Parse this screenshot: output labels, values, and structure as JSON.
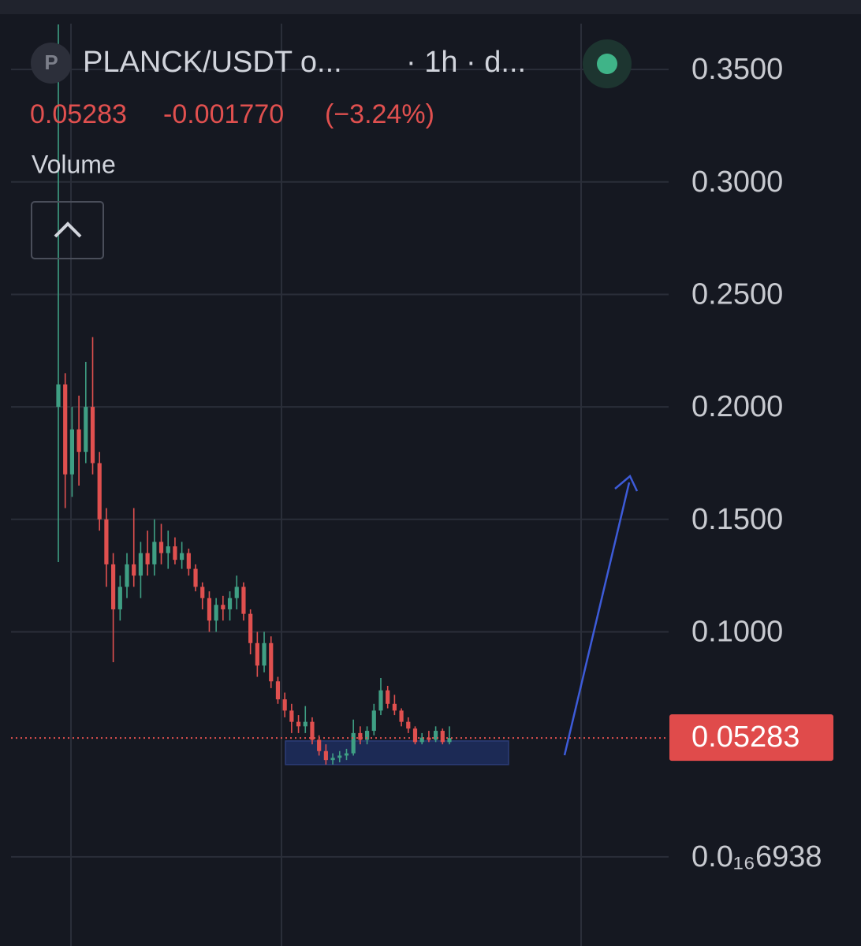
{
  "header": {
    "logo": "P",
    "symbol": "PLANCK/USDT o...",
    "interval": "· 1h · d...",
    "change": "-0.001770",
    "change_pct": "(−3.24%)",
    "volume_label": "Volume"
  },
  "chart_data": {
    "type": "candlestick",
    "open": [
      0.2,
      0.21,
      0.17,
      0.19,
      0.18,
      0.2,
      0.175,
      0.15,
      0.13,
      0.11,
      0.12,
      0.13,
      0.125,
      0.135,
      0.13,
      0.14,
      0.135,
      0.138,
      0.132,
      0.135,
      0.128,
      0.12,
      0.115,
      0.105,
      0.112,
      0.11,
      0.115,
      0.12,
      0.108,
      0.095,
      0.085,
      0.095,
      0.078,
      0.07,
      0.065,
      0.06,
      0.058,
      0.06,
      0.052,
      0.047,
      0.043,
      0.044,
      0.045,
      0.046,
      0.055,
      0.052,
      0.056,
      0.065,
      0.074,
      0.068,
      0.065,
      0.06,
      0.057,
      0.051,
      0.053,
      0.052,
      0.056,
      0.051
    ],
    "high": [
      0.37,
      0.215,
      0.2,
      0.205,
      0.22,
      0.231,
      0.18,
      0.155,
      0.135,
      0.125,
      0.135,
      0.155,
      0.14,
      0.145,
      0.15,
      0.148,
      0.145,
      0.142,
      0.14,
      0.137,
      0.13,
      0.122,
      0.118,
      0.115,
      0.116,
      0.118,
      0.125,
      0.122,
      0.11,
      0.1,
      0.1,
      0.098,
      0.08,
      0.073,
      0.068,
      0.063,
      0.067,
      0.062,
      0.054,
      0.05,
      0.046,
      0.047,
      0.048,
      0.061,
      0.058,
      0.058,
      0.068,
      0.0795,
      0.076,
      0.072,
      0.066,
      0.062,
      0.058,
      0.055,
      0.056,
      0.058,
      0.057,
      0.058
    ],
    "low": [
      0.131,
      0.155,
      0.16,
      0.165,
      0.175,
      0.17,
      0.145,
      0.12,
      0.0865,
      0.105,
      0.115,
      0.12,
      0.115,
      0.125,
      0.125,
      0.13,
      0.128,
      0.13,
      0.128,
      0.125,
      0.118,
      0.11,
      0.1,
      0.1,
      0.105,
      0.105,
      0.11,
      0.105,
      0.09,
      0.08,
      0.082,
      0.075,
      0.068,
      0.062,
      0.055,
      0.055,
      0.055,
      0.05,
      0.045,
      0.041,
      0.041,
      0.042,
      0.043,
      0.045,
      0.05,
      0.05,
      0.054,
      0.063,
      0.066,
      0.063,
      0.058,
      0.055,
      0.05,
      0.05,
      0.051,
      0.051,
      0.05,
      0.05
    ],
    "close": [
      0.21,
      0.17,
      0.19,
      0.18,
      0.2,
      0.175,
      0.15,
      0.13,
      0.11,
      0.12,
      0.13,
      0.125,
      0.135,
      0.13,
      0.14,
      0.135,
      0.138,
      0.132,
      0.135,
      0.128,
      0.12,
      0.115,
      0.105,
      0.112,
      0.11,
      0.115,
      0.12,
      0.108,
      0.095,
      0.085,
      0.095,
      0.078,
      0.07,
      0.065,
      0.06,
      0.058,
      0.06,
      0.052,
      0.047,
      0.043,
      0.044,
      0.045,
      0.046,
      0.055,
      0.052,
      0.056,
      0.065,
      0.074,
      0.068,
      0.065,
      0.06,
      0.057,
      0.051,
      0.053,
      0.052,
      0.056,
      0.051,
      0.05283
    ],
    "up_color": "#3f9f84",
    "down_color": "#e0504f",
    "last_price": 0.05283,
    "support_zone": [
      0.041,
      0.0515
    ],
    "ylim": [
      -0.04,
      0.37
    ],
    "yticks": [
      {
        "value": 0.35,
        "label": "0.3500"
      },
      {
        "value": 0.3,
        "label": "0.3000"
      },
      {
        "value": 0.25,
        "label": "0.2500"
      },
      {
        "value": 0.2,
        "label": "0.2000"
      },
      {
        "value": 0.15,
        "label": "0.1500"
      },
      {
        "value": 0.1,
        "label": "0.1000"
      },
      {
        "value": 6.938e-17,
        "label": "0.0₁₆6938"
      }
    ],
    "grid": true
  }
}
